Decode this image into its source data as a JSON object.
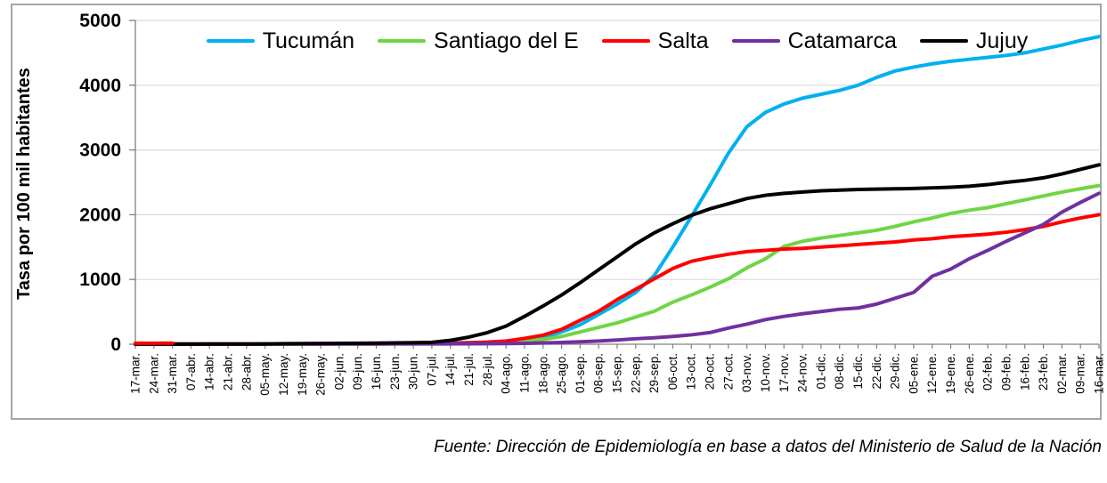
{
  "source_note": "Fuente: Dirección de Epidemiología en base a datos del Ministerio de Salud de la Nación",
  "chart_data": {
    "type": "line",
    "title": "",
    "xlabel": "",
    "ylabel": "Tasa por 100 mil habitantes",
    "ylim": [
      0,
      5000
    ],
    "yticks": [
      0,
      1000,
      2000,
      3000,
      4000,
      5000
    ],
    "grid": true,
    "legend_position": "top",
    "categories": [
      "17-mar.",
      "24-mar.",
      "31-mar.",
      "07-abr.",
      "14-abr.",
      "21-abr.",
      "28-abr.",
      "05-may.",
      "12-may.",
      "19-may.",
      "26-may.",
      "02-jun.",
      "09-jun.",
      "16-jun.",
      "23-jun.",
      "30-jun.",
      "07-jul.",
      "14-jul.",
      "21-jul.",
      "28-jul.",
      "04-ago.",
      "11-ago.",
      "18-ago.",
      "25-ago.",
      "01-sep.",
      "08-sep.",
      "15-sep.",
      "22-sep.",
      "29-sep.",
      "06-oct.",
      "13-oct.",
      "20-oct.",
      "27-oct.",
      "03-nov.",
      "10-nov.",
      "17-nov.",
      "24-nov.",
      "01-dic.",
      "08-dic.",
      "15-dic.",
      "22-dic.",
      "29-dic.",
      "05-ene.",
      "12-ene.",
      "19-ene.",
      "26-ene.",
      "02-feb.",
      "09-feb.",
      "16-feb.",
      "23-feb.",
      "02-mar.",
      "09-mar.",
      "16-mar."
    ],
    "series": [
      {
        "name": "Tucumán",
        "color": "#00B0F0",
        "values": [
          2,
          2,
          3,
          3,
          4,
          4,
          5,
          5,
          6,
          6,
          7,
          8,
          9,
          10,
          12,
          14,
          16,
          20,
          25,
          30,
          40,
          65,
          100,
          190,
          300,
          460,
          620,
          800,
          1060,
          1500,
          1970,
          2450,
          2950,
          3360,
          3580,
          3710,
          3800,
          3860,
          3920,
          4000,
          4120,
          4220,
          4280,
          4330,
          4370,
          4400,
          4430,
          4460,
          4500,
          4560,
          4620,
          4690,
          4750
        ]
      },
      {
        "name": "Santiago del E",
        "color": "#6FD544",
        "values": [
          1,
          1,
          1,
          2,
          2,
          2,
          3,
          3,
          3,
          4,
          4,
          5,
          5,
          6,
          7,
          8,
          9,
          11,
          14,
          18,
          25,
          45,
          75,
          120,
          190,
          260,
          330,
          420,
          510,
          650,
          760,
          880,
          1010,
          1180,
          1320,
          1510,
          1590,
          1640,
          1680,
          1720,
          1760,
          1820,
          1890,
          1950,
          2020,
          2070,
          2110,
          2170,
          2230,
          2290,
          2350,
          2400,
          2450
        ]
      },
      {
        "name": "Salta",
        "color": "#FF0000",
        "values": [
          2,
          2,
          3,
          3,
          3,
          4,
          4,
          5,
          5,
          6,
          6,
          7,
          8,
          9,
          10,
          11,
          12,
          16,
          22,
          32,
          50,
          90,
          140,
          230,
          370,
          510,
          690,
          850,
          1010,
          1170,
          1280,
          1340,
          1390,
          1430,
          1450,
          1470,
          1480,
          1500,
          1520,
          1540,
          1560,
          1580,
          1610,
          1630,
          1660,
          1680,
          1700,
          1730,
          1770,
          1820,
          1890,
          1950,
          2000
        ]
      },
      {
        "name": "Catamarca",
        "color": "#7030A0",
        "values": [
          1,
          1,
          1,
          1,
          2,
          2,
          2,
          2,
          3,
          3,
          3,
          4,
          4,
          4,
          5,
          5,
          6,
          6,
          7,
          8,
          10,
          14,
          20,
          28,
          38,
          50,
          65,
          85,
          100,
          120,
          145,
          180,
          250,
          310,
          380,
          430,
          470,
          505,
          540,
          560,
          620,
          710,
          800,
          1050,
          1160,
          1320,
          1450,
          1590,
          1720,
          1850,
          2040,
          2190,
          2330
        ]
      },
      {
        "name": "Jujuy",
        "color": "#000000",
        "values": [
          1,
          1,
          2,
          2,
          3,
          3,
          4,
          5,
          8,
          10,
          12,
          14,
          16,
          18,
          20,
          24,
          30,
          60,
          110,
          180,
          280,
          430,
          590,
          760,
          950,
          1150,
          1350,
          1550,
          1720,
          1860,
          1990,
          2090,
          2170,
          2250,
          2300,
          2330,
          2350,
          2370,
          2380,
          2390,
          2395,
          2400,
          2405,
          2415,
          2425,
          2440,
          2465,
          2500,
          2530,
          2570,
          2630,
          2700,
          2770
        ]
      }
    ]
  }
}
